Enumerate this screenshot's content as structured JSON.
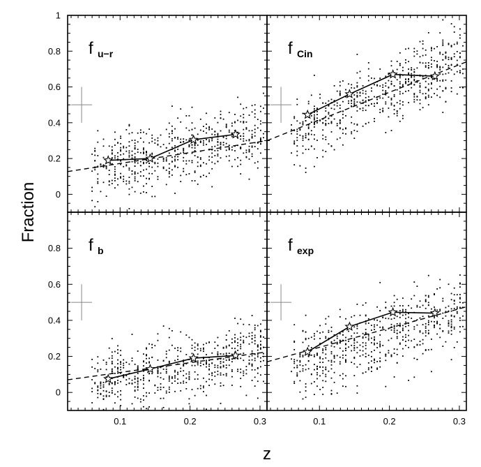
{
  "figure": {
    "ylabel": "Fraction",
    "xlabel": "z"
  },
  "chart_data": [
    {
      "type": "scatter",
      "label_main": "f",
      "label_sub": "u−r",
      "xlim": [
        0.025,
        0.31
      ],
      "ylim": [
        -0.1,
        1.0
      ],
      "x_ticks": [
        "0.1",
        "0.2",
        "0.3"
      ],
      "y_ticks": [
        "0",
        "0.2",
        "0.4",
        "0.6",
        "0.8",
        "1"
      ],
      "x_tick_values": [
        0.1,
        0.2,
        0.3
      ],
      "y_tick_values": [
        0,
        0.2,
        0.4,
        0.6,
        0.8,
        1.0
      ],
      "errorbar": {
        "x": 0.045,
        "y": 0.5,
        "dx": 0.015,
        "dy": 0.1
      },
      "scatter": {
        "z_min": 0.06,
        "z_max": 0.305,
        "intercept": 0.07,
        "slope": 0.95,
        "spread": 0.14,
        "count": 600
      },
      "series": [
        {
          "x": [
            0.083,
            0.143,
            0.205,
            0.265
          ],
          "y": [
            0.19,
            0.2,
            0.305,
            0.335
          ]
        }
      ],
      "trend_line": {
        "x": [
          0.025,
          0.31
        ],
        "y": [
          0.127,
          0.3
        ]
      }
    },
    {
      "type": "scatter",
      "label_main": "f",
      "label_sub": "Cin",
      "xlim": [
        0.025,
        0.31
      ],
      "ylim": [
        -0.1,
        1.0
      ],
      "x_ticks": [
        "0.1",
        "0.2",
        "0.3"
      ],
      "y_ticks": [
        "0",
        "0.2",
        "0.4",
        "0.6",
        "0.8",
        "1"
      ],
      "x_tick_values": [
        0.1,
        0.2,
        0.3
      ],
      "y_tick_values": [
        0,
        0.2,
        0.4,
        0.6,
        0.8,
        1.0
      ],
      "errorbar": {
        "x": 0.045,
        "y": 0.5,
        "dx": 0.015,
        "dy": 0.1
      },
      "scatter": {
        "z_min": 0.06,
        "z_max": 0.305,
        "intercept": 0.23,
        "slope": 1.75,
        "spread": 0.14,
        "count": 600
      },
      "series": [
        {
          "x": [
            0.083,
            0.143,
            0.205,
            0.265
          ],
          "y": [
            0.445,
            0.56,
            0.67,
            0.66
          ]
        }
      ],
      "trend_line": {
        "x": [
          0.025,
          0.31
        ],
        "y": [
          0.3,
          0.74
        ]
      }
    },
    {
      "type": "scatter",
      "label_main": "f",
      "label_sub": "b",
      "xlim": [
        0.025,
        0.31
      ],
      "ylim": [
        -0.1,
        1.0
      ],
      "x_ticks": [
        "0.1",
        "0.2",
        "0.3"
      ],
      "y_ticks": [
        "0",
        "0.2",
        "0.4",
        "0.6",
        "0.8"
      ],
      "x_tick_values": [
        0.1,
        0.2,
        0.3
      ],
      "y_tick_values": [
        0,
        0.2,
        0.4,
        0.6,
        0.8
      ],
      "errorbar": {
        "x": 0.045,
        "y": 0.5,
        "dx": 0.015,
        "dy": 0.1
      },
      "scatter": {
        "z_min": 0.06,
        "z_max": 0.305,
        "intercept": 0.0,
        "slope": 0.75,
        "spread": 0.13,
        "count": 600
      },
      "series": [
        {
          "x": [
            0.083,
            0.143,
            0.205,
            0.265
          ],
          "y": [
            0.075,
            0.13,
            0.19,
            0.205
          ]
        }
      ],
      "trend_line": {
        "x": [
          0.025,
          0.31
        ],
        "y": [
          0.07,
          0.225
        ]
      }
    },
    {
      "type": "scatter",
      "label_main": "f",
      "label_sub": "exp",
      "xlim": [
        0.025,
        0.31
      ],
      "ylim": [
        -0.1,
        1.0
      ],
      "x_ticks": [
        "0.1",
        "0.2",
        "0.3"
      ],
      "y_ticks": [
        "0",
        "0.2",
        "0.4",
        "0.6",
        "0.8"
      ],
      "x_tick_values": [
        0.1,
        0.2,
        0.3
      ],
      "y_tick_values": [
        0,
        0.2,
        0.4,
        0.6,
        0.8
      ],
      "errorbar": {
        "x": 0.045,
        "y": 0.5,
        "dx": 0.015,
        "dy": 0.1
      },
      "scatter": {
        "z_min": 0.06,
        "z_max": 0.305,
        "intercept": 0.07,
        "slope": 1.3,
        "spread": 0.15,
        "count": 600
      },
      "series": [
        {
          "x": [
            0.083,
            0.143,
            0.205,
            0.265
          ],
          "y": [
            0.225,
            0.365,
            0.445,
            0.44
          ]
        }
      ],
      "trend_line": {
        "x": [
          0.025,
          0.31
        ],
        "y": [
          0.17,
          0.475
        ]
      }
    }
  ]
}
